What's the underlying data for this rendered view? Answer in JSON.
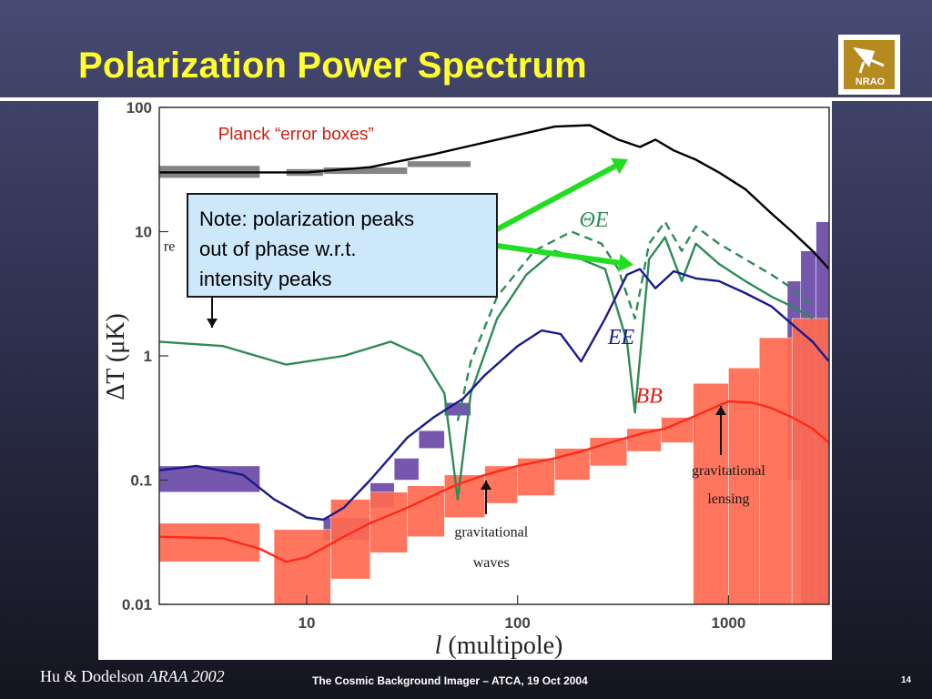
{
  "slide": {
    "title": "Polarization Power Spectrum",
    "logo_text": "NRAO",
    "reference_prefix": "Hu & Dodelson",
    "reference_italic": "ARAA 2002",
    "footer": "The Cosmic Background Imager – ATCA, 19 Oct 2004",
    "page_number": "14"
  },
  "chart_data": {
    "type": "line",
    "xlabel_var": "l",
    "xlabel_rest": " (multipole)",
    "ylabel_main": "ΔT (μK)",
    "xscale": "log",
    "yscale": "log",
    "xlim": [
      2,
      3000
    ],
    "ylim": [
      0.01,
      100
    ],
    "x_ticks": [
      {
        "value": 10,
        "label": "10"
      },
      {
        "value": 100,
        "label": "100"
      },
      {
        "value": 1000,
        "label": "1000"
      }
    ],
    "y_ticks": [
      {
        "value": 100,
        "label": "100"
      },
      {
        "value": 10,
        "label": "10"
      },
      {
        "value": 1,
        "label": "1"
      },
      {
        "value": 0.1,
        "label": "0.1"
      },
      {
        "value": 0.01,
        "label": "0.01"
      }
    ],
    "series": [
      {
        "name": "",
        "color": "#000000",
        "dashed": false,
        "x": [
          2,
          5,
          10,
          20,
          40,
          80,
          150,
          220,
          300,
          380,
          450,
          550,
          700,
          900,
          1200,
          1600,
          2000,
          2500,
          3000
        ],
        "y": [
          30,
          30,
          30,
          33,
          42,
          55,
          70,
          72,
          55,
          48,
          55,
          45,
          38,
          30,
          22,
          14,
          10,
          7,
          5
        ]
      },
      {
        "name": "ΘE",
        "color": "#2e8b57",
        "dashed": false,
        "x": [
          2,
          4,
          8,
          15,
          25,
          35,
          45,
          52,
          60,
          80,
          110,
          150,
          200,
          260,
          330,
          360,
          420,
          500,
          600,
          700,
          900,
          1200,
          1600,
          2000,
          2500
        ],
        "y": [
          1.3,
          1.2,
          0.85,
          1.0,
          1.3,
          1.0,
          0.5,
          0.07,
          0.5,
          2.0,
          4.5,
          7.0,
          6.0,
          5.0,
          1.3,
          0.35,
          6.0,
          9.0,
          4.0,
          8.0,
          5.5,
          4.0,
          3.0,
          2.5,
          2.0
        ]
      },
      {
        "name": "ΘE (dashed)",
        "color": "#2e8b57",
        "dashed": true,
        "x": [
          52,
          60,
          80,
          120,
          180,
          250,
          300,
          360,
          420,
          500,
          600,
          700,
          900,
          1200,
          1600,
          2000,
          2500
        ],
        "y": [
          0.3,
          0.9,
          3.0,
          7.0,
          10.0,
          8.0,
          5.0,
          2.0,
          8.0,
          12.0,
          7.0,
          11.0,
          8.0,
          6.0,
          4.5,
          3.5,
          2.5
        ]
      },
      {
        "name": "EE",
        "color": "#1a1a8a",
        "dashed": false,
        "x": [
          2,
          3,
          5,
          7,
          10,
          12,
          15,
          20,
          30,
          40,
          55,
          70,
          100,
          130,
          160,
          200,
          260,
          330,
          380,
          450,
          550,
          700,
          900,
          1200,
          1600,
          2000,
          2500,
          3000
        ],
        "y": [
          0.12,
          0.13,
          0.11,
          0.07,
          0.05,
          0.048,
          0.06,
          0.1,
          0.22,
          0.32,
          0.45,
          0.7,
          1.2,
          1.6,
          1.5,
          0.9,
          2.0,
          4.5,
          5.0,
          3.5,
          4.8,
          4.2,
          4.0,
          3.2,
          2.5,
          1.8,
          1.3,
          0.9
        ]
      },
      {
        "name": "BB",
        "color": "#ff2a1a",
        "dashed": false,
        "x": [
          2,
          4,
          6,
          8,
          10,
          15,
          20,
          30,
          50,
          70,
          100,
          150,
          200,
          300,
          400,
          500,
          700,
          1000,
          1300,
          1600,
          2000,
          2500,
          3000
        ],
        "y": [
          0.035,
          0.034,
          0.028,
          0.022,
          0.024,
          0.035,
          0.045,
          0.06,
          0.09,
          0.11,
          0.13,
          0.15,
          0.17,
          0.21,
          0.24,
          0.26,
          0.33,
          0.43,
          0.42,
          0.38,
          0.32,
          0.26,
          0.2
        ]
      }
    ],
    "error_boxes": [
      {
        "color": "#6a4aa8",
        "x0": 2,
        "x1": 6,
        "y0": 0.08,
        "y1": 0.13
      },
      {
        "color": "#6a4aa8",
        "x0": 12,
        "x1": 20,
        "y0": 0.05,
        "y1": 0.033
      },
      {
        "color": "#6a4aa8",
        "x0": 20,
        "x1": 26,
        "y0": 0.095,
        "y1": 0.06
      },
      {
        "color": "#6a4aa8",
        "x0": 26,
        "x1": 34,
        "y0": 0.15,
        "y1": 0.1
      },
      {
        "color": "#6a4aa8",
        "x0": 34,
        "x1": 45,
        "y0": 0.25,
        "y1": 0.18
      },
      {
        "color": "#6a4aa8",
        "x0": 45,
        "x1": 60,
        "y0": 0.42,
        "y1": 0.33
      },
      {
        "color": "#6a4aa8",
        "x0": 1900,
        "x1": 2200,
        "y0": 0.1,
        "y1": 4
      },
      {
        "color": "#6a4aa8",
        "x0": 2200,
        "x1": 2600,
        "y0": 0.01,
        "y1": 7
      },
      {
        "color": "#6a4aa8",
        "x0": 2600,
        "x1": 3000,
        "y0": 0.01,
        "y1": 12
      },
      {
        "color": "#ff6a50",
        "x0": 2,
        "x1": 6,
        "y0": 0.022,
        "y1": 0.045
      },
      {
        "color": "#ff6a50",
        "x0": 7,
        "x1": 13,
        "y0": 0.01,
        "y1": 0.04
      },
      {
        "color": "#ff6a50",
        "x0": 13,
        "x1": 20,
        "y0": 0.016,
        "y1": 0.07
      },
      {
        "color": "#ff6a50",
        "x0": 20,
        "x1": 30,
        "y0": 0.026,
        "y1": 0.08
      },
      {
        "color": "#ff6a50",
        "x0": 30,
        "x1": 45,
        "y0": 0.035,
        "y1": 0.09
      },
      {
        "color": "#ff6a50",
        "x0": 45,
        "x1": 70,
        "y0": 0.05,
        "y1": 0.11
      },
      {
        "color": "#ff6a50",
        "x0": 70,
        "x1": 100,
        "y0": 0.065,
        "y1": 0.13
      },
      {
        "color": "#ff6a50",
        "x0": 100,
        "x1": 150,
        "y0": 0.075,
        "y1": 0.15
      },
      {
        "color": "#ff6a50",
        "x0": 150,
        "x1": 220,
        "y0": 0.1,
        "y1": 0.18
      },
      {
        "color": "#ff6a50",
        "x0": 220,
        "x1": 330,
        "y0": 0.13,
        "y1": 0.22
      },
      {
        "color": "#ff6a50",
        "x0": 330,
        "x1": 480,
        "y0": 0.17,
        "y1": 0.26
      },
      {
        "color": "#ff6a50",
        "x0": 480,
        "x1": 700,
        "y0": 0.2,
        "y1": 0.32
      },
      {
        "color": "#ff6a50",
        "x0": 680,
        "x1": 1000,
        "y0": 0.01,
        "y1": 0.6
      },
      {
        "color": "#ff6a50",
        "x0": 1000,
        "x1": 1400,
        "y0": 0.01,
        "y1": 0.8
      },
      {
        "color": "#ff6a50",
        "x0": 1400,
        "x1": 2000,
        "y0": 0.01,
        "y1": 1.4
      },
      {
        "color": "#ff6a50",
        "x0": 2000,
        "x1": 3000,
        "y0": 0.01,
        "y1": 2.0
      },
      {
        "color": "#7a7a7a",
        "x0": 2,
        "x1": 6,
        "y0": 27,
        "y1": 34
      },
      {
        "color": "#7a7a7a",
        "x0": 8,
        "x1": 12,
        "y0": 28,
        "y1": 32
      },
      {
        "color": "#7a7a7a",
        "x0": 12,
        "x1": 30,
        "y0": 29,
        "y1": 33
      },
      {
        "color": "#7a7a7a",
        "x0": 30,
        "x1": 60,
        "y0": 33,
        "y1": 37
      }
    ],
    "annotations": [
      {
        "text": "Planck “error boxes”",
        "x": 3.8,
        "y": 55,
        "color": "#cc1f10",
        "font": "sans",
        "size": 19
      },
      {
        "text": "ΘE",
        "x": 230,
        "y": 11,
        "color": "#2e8b57",
        "font": "serif-italic",
        "size": 24
      },
      {
        "text": "EE",
        "x": 310,
        "y": 1.25,
        "color": "#1a1a8a",
        "font": "serif-italic",
        "size": 24
      },
      {
        "text": "BB",
        "x": 420,
        "y": 0.42,
        "color": "#e51a10",
        "font": "serif-italic",
        "size": 24
      },
      {
        "text": "gravitational",
        "x": 75,
        "y": 0.035,
        "color": "#1a1a1a",
        "font": "serif",
        "size": 16
      },
      {
        "text": "waves",
        "x": 75,
        "y": 0.02,
        "color": "#1a1a1a",
        "font": "serif",
        "size": 16
      },
      {
        "text": "gravitational",
        "x": 1000,
        "y": 0.11,
        "color": "#1a1a1a",
        "font": "serif",
        "size": 16
      },
      {
        "text": "lensing",
        "x": 1000,
        "y": 0.065,
        "color": "#1a1a1a",
        "font": "serif",
        "size": 16
      },
      {
        "text": "re",
        "x": 2.1,
        "y": 7,
        "color": "#1a1a1a",
        "font": "serif",
        "size": 16
      }
    ],
    "note": {
      "line1": "Note: polarization peaks",
      "line2": "out of phase w.r.t.",
      "line3": "intensity peaks"
    }
  }
}
